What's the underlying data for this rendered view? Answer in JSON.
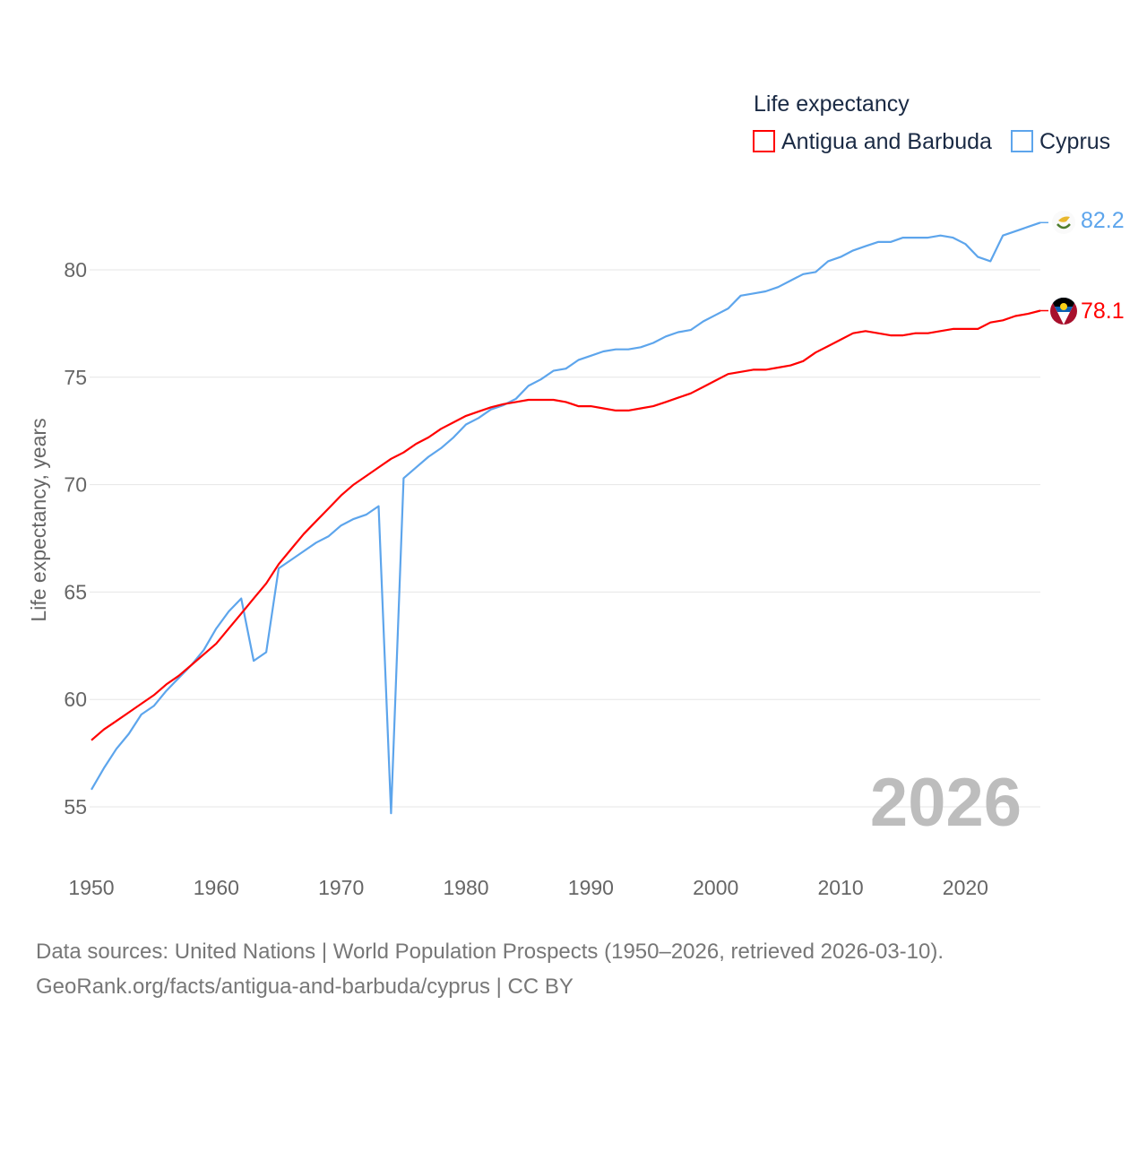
{
  "chart_data": {
    "type": "line",
    "legend_title": "Life expectancy",
    "legend_placement": "top-right",
    "ylabel": "Life expectancy, years",
    "xlabel": "",
    "xlim": [
      1950,
      2026
    ],
    "ylim": [
      55,
      80
    ],
    "x_ticks": [
      1950,
      1960,
      1970,
      1980,
      1990,
      2000,
      2010,
      2020
    ],
    "y_ticks": [
      55,
      60,
      65,
      70,
      75,
      80
    ],
    "grid": "horizontal",
    "year_watermark": "2026",
    "series": [
      {
        "name": "Antigua and Barbuda",
        "color": "#ff0000",
        "end_label": "78.1",
        "flag": "antigua-and-barbuda-flag",
        "start_year": 1950,
        "values": [
          58.1,
          58.6,
          59.0,
          59.4,
          59.8,
          60.2,
          60.7,
          61.1,
          61.6,
          62.1,
          62.6,
          63.3,
          64.0,
          64.7,
          65.4,
          66.3,
          67.0,
          67.7,
          68.3,
          68.9,
          69.5,
          70.0,
          70.4,
          70.8,
          71.2,
          71.5,
          71.9,
          72.2,
          72.6,
          72.9,
          73.2,
          73.4,
          73.6,
          73.75,
          73.85,
          73.95,
          73.95,
          73.95,
          73.85,
          73.65,
          73.65,
          73.55,
          73.45,
          73.45,
          73.55,
          73.65,
          73.85,
          74.05,
          74.25,
          74.55,
          74.85,
          75.15,
          75.25,
          75.35,
          75.35,
          75.45,
          75.55,
          75.75,
          76.15,
          76.45,
          76.75,
          77.05,
          77.15,
          77.05,
          76.95,
          76.95,
          77.05,
          77.05,
          77.15,
          77.25,
          77.25,
          77.25,
          77.55,
          77.65,
          77.85,
          77.95,
          78.1
        ]
      },
      {
        "name": "Cyprus",
        "color": "#5da5ec",
        "end_label": "82.2",
        "flag": "cyprus-flag",
        "start_year": 1950,
        "values": [
          55.8,
          56.8,
          57.7,
          58.4,
          59.3,
          59.7,
          60.4,
          61.0,
          61.6,
          62.3,
          63.3,
          64.1,
          64.7,
          61.8,
          62.2,
          66.1,
          66.5,
          66.9,
          67.3,
          67.6,
          68.1,
          68.4,
          68.6,
          69.0,
          54.7,
          70.3,
          70.8,
          71.3,
          71.7,
          72.2,
          72.8,
          73.1,
          73.5,
          73.7,
          74.0,
          74.6,
          74.9,
          75.3,
          75.4,
          75.8,
          76.0,
          76.2,
          76.3,
          76.3,
          76.4,
          76.6,
          76.9,
          77.1,
          77.2,
          77.6,
          77.9,
          78.2,
          78.8,
          78.9,
          79.0,
          79.2,
          79.5,
          79.8,
          79.9,
          80.4,
          80.6,
          80.9,
          81.1,
          81.3,
          81.3,
          81.5,
          81.5,
          81.5,
          81.6,
          81.5,
          81.2,
          80.6,
          80.4,
          81.6,
          81.8,
          82.0,
          82.2
        ]
      }
    ]
  },
  "footer": {
    "line1": "Data sources: United Nations | World Population Prospects (1950–2026, retrieved 2026-03-10).",
    "line2": "GeoRank.org/facts/antigua-and-barbuda/cyprus | CC BY"
  }
}
